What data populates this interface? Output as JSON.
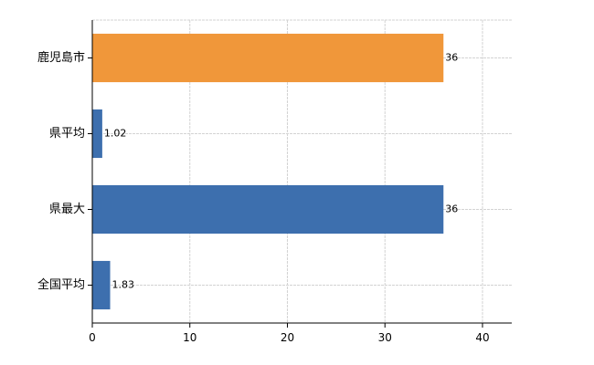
{
  "chart_data": {
    "type": "bar",
    "orientation": "horizontal",
    "categories": [
      "鹿児島市",
      "県平均",
      "県最大",
      "全国平均"
    ],
    "values": [
      36,
      1.02,
      36,
      1.83
    ],
    "data_labels": [
      "36",
      "1.02",
      "36",
      "1.83"
    ],
    "bar_colors": [
      "#f0973a",
      "#3d6fae",
      "#3d6fae",
      "#3d6fae"
    ],
    "xlim": [
      0,
      43
    ],
    "xticks": [
      0,
      10,
      20,
      30,
      40
    ],
    "grid": true,
    "title": "",
    "xlabel": "",
    "ylabel": ""
  }
}
